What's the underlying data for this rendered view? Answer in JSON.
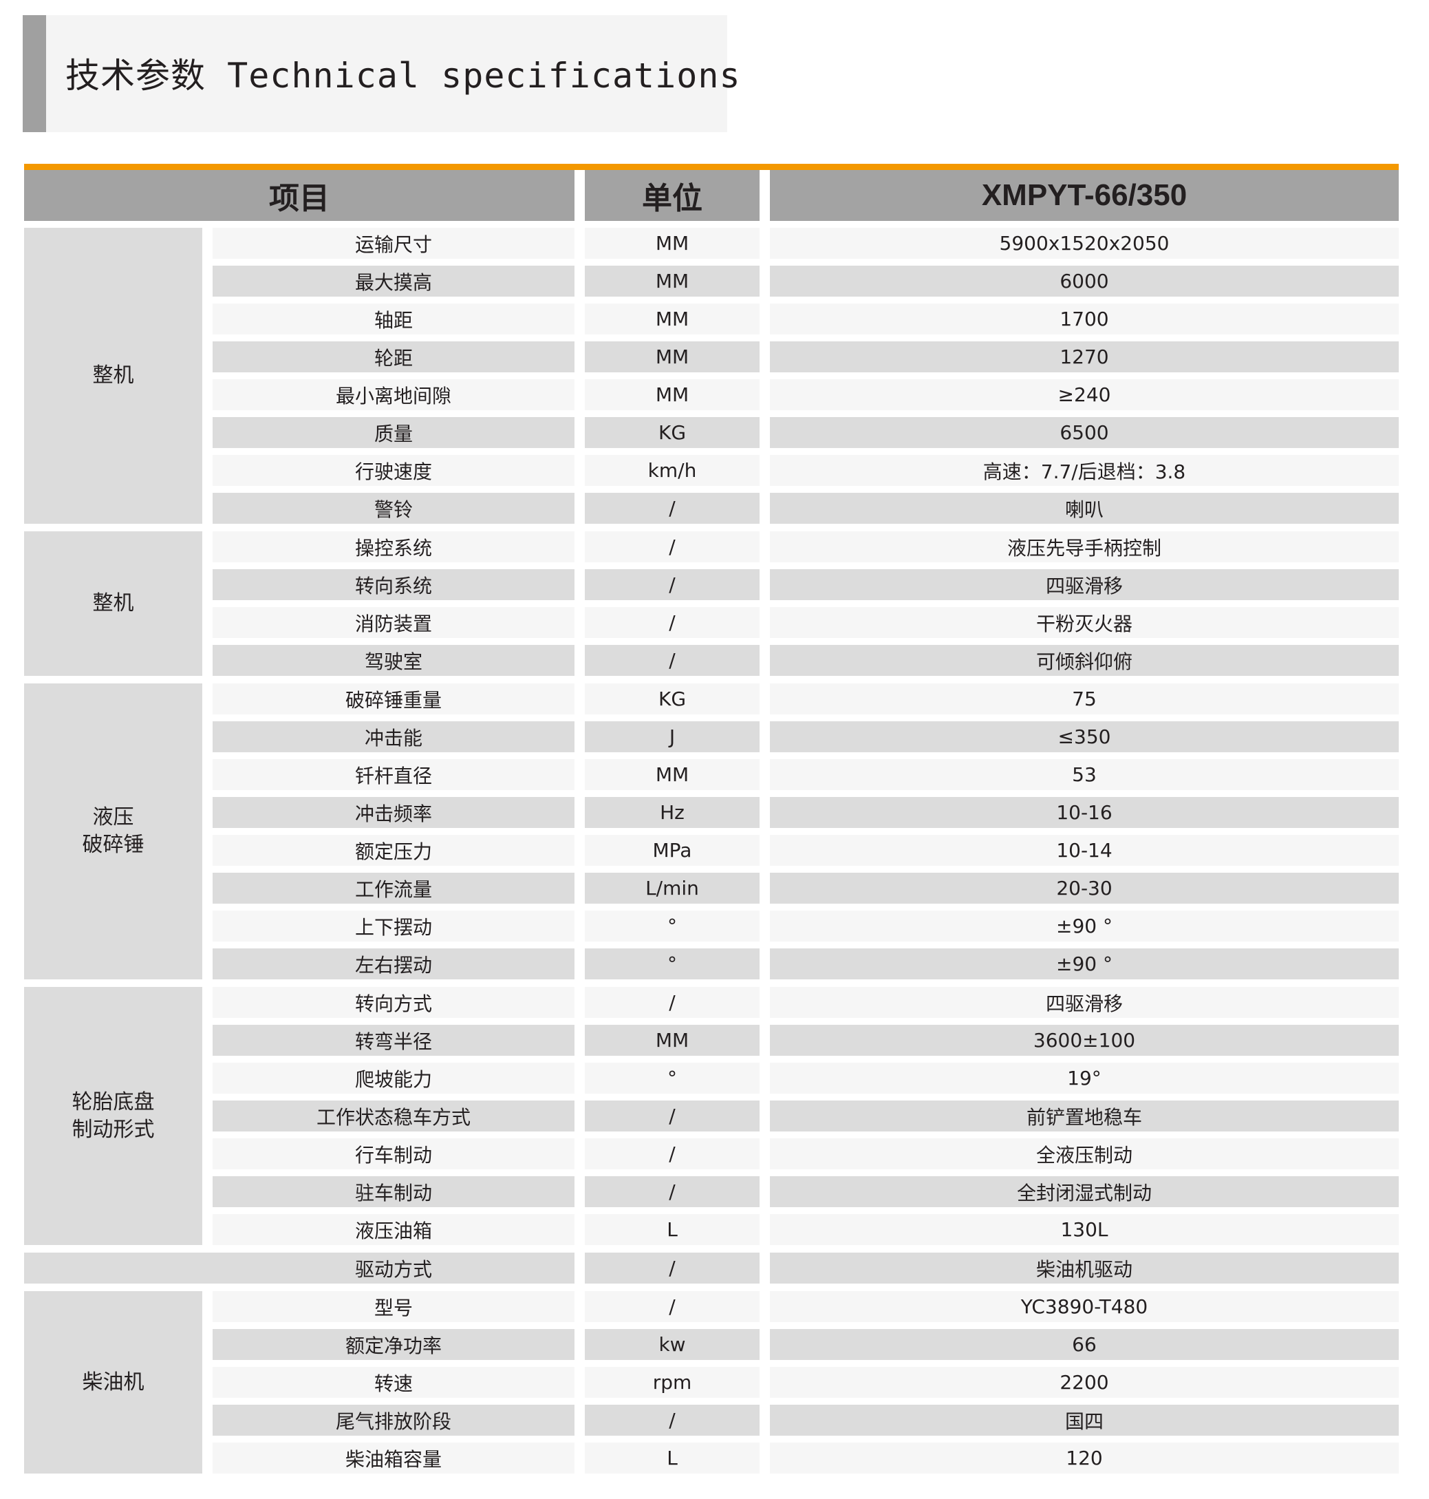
{
  "title": "技术参数 Technical specifications",
  "colors": {
    "accent": "#f39800",
    "header_bg": "#a3a3a3",
    "row_dark": "#dcdcdc",
    "row_light": "#f6f6f6"
  },
  "header": {
    "item": "项目",
    "unit": "单位",
    "model": "XMPYT-66/350"
  },
  "groups": [
    {
      "label": "整机",
      "rows": [
        {
          "item": "运输尺寸",
          "unit": "MM",
          "value": "5900x1520x2050"
        },
        {
          "item": "最大摸高",
          "unit": "MM",
          "value": "6000"
        },
        {
          "item": "轴距",
          "unit": "MM",
          "value": "1700"
        },
        {
          "item": "轮距",
          "unit": "MM",
          "value": "1270"
        },
        {
          "item": "最小离地间隙",
          "unit": "MM",
          "value": "≥240"
        },
        {
          "item": "质量",
          "unit": "KG",
          "value": "6500"
        },
        {
          "item": "行驶速度",
          "unit": "km/h",
          "value": "高速：7.7/后退档：3.8"
        },
        {
          "item": "警铃",
          "unit": "/",
          "value": "喇叭"
        }
      ]
    },
    {
      "label": "整机",
      "rows": [
        {
          "item": "操控系统",
          "unit": "/",
          "value": "液压先导手柄控制"
        },
        {
          "item": "转向系统",
          "unit": "/",
          "value": "四驱滑移"
        },
        {
          "item": "消防装置",
          "unit": "/",
          "value": "干粉灭火器"
        },
        {
          "item": "驾驶室",
          "unit": "/",
          "value": "可倾斜仰俯"
        }
      ]
    },
    {
      "label": "液压\n破碎锤",
      "rows": [
        {
          "item": "破碎锤重量",
          "unit": "KG",
          "value": "75"
        },
        {
          "item": "冲击能",
          "unit": "J",
          "value": "≤350"
        },
        {
          "item": "钎杆直径",
          "unit": "MM",
          "value": "53"
        },
        {
          "item": "冲击频率",
          "unit": "Hz",
          "value": "10-16"
        },
        {
          "item": "额定压力",
          "unit": "MPa",
          "value": "10-14"
        },
        {
          "item": "工作流量",
          "unit": "L/min",
          "value": "20-30"
        },
        {
          "item": "上下摆动",
          "unit": "°",
          "value": "±90 °"
        },
        {
          "item": "左右摆动",
          "unit": "°",
          "value": "±90 °"
        }
      ]
    },
    {
      "label": "轮胎底盘\n制动形式",
      "rows": [
        {
          "item": "转向方式",
          "unit": "/",
          "value": "四驱滑移"
        },
        {
          "item": "转弯半径",
          "unit": "MM",
          "value": "3600±100"
        },
        {
          "item": "爬坡能力",
          "unit": "°",
          "value": "19°"
        },
        {
          "item": "工作状态稳车方式",
          "unit": "/",
          "value": "前铲置地稳车"
        },
        {
          "item": "行车制动",
          "unit": "/",
          "value": "全液压制动"
        },
        {
          "item": "驻车制动",
          "unit": "/",
          "value": "全封闭湿式制动"
        },
        {
          "item": "液压油箱",
          "unit": "L",
          "value": "130L"
        }
      ]
    },
    {
      "label": "",
      "rows": [
        {
          "item": "驱动方式",
          "unit": "/",
          "value": "柴油机驱动"
        }
      ]
    },
    {
      "label": "柴油机",
      "rows": [
        {
          "item": "型号",
          "unit": "/",
          "value": "YC3890-T480"
        },
        {
          "item": "额定净功率",
          "unit": "kw",
          "value": "66"
        },
        {
          "item": "转速",
          "unit": "rpm",
          "value": "2200"
        },
        {
          "item": "尾气排放阶段",
          "unit": "/",
          "value": "国四"
        },
        {
          "item": "柴油箱容量",
          "unit": "L",
          "value": "120"
        }
      ]
    }
  ]
}
